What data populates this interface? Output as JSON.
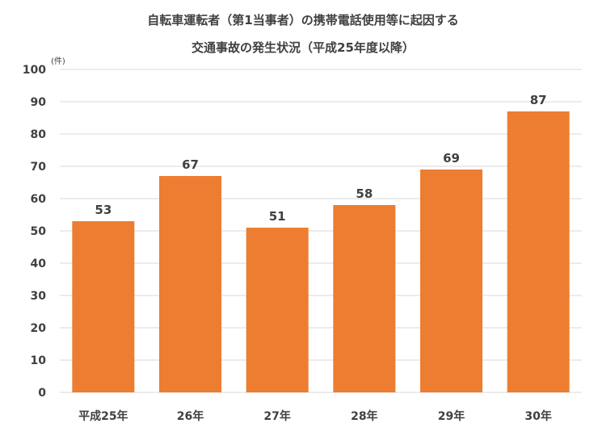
{
  "chart_data": {
    "type": "bar",
    "title": [
      "自転車運転者（第1当事者）の携帯電話使用等に起因する",
      "交通事故の発生状況（平成25年度以降）"
    ],
    "ylabel": "(件)",
    "categories": [
      "平成25年",
      "26年",
      "27年",
      "28年",
      "29年",
      "30年"
    ],
    "values": [
      53,
      67,
      51,
      58,
      69,
      87
    ],
    "ylim": [
      0,
      100
    ],
    "yticks": [
      0,
      10,
      20,
      30,
      40,
      50,
      60,
      70,
      80,
      90,
      100
    ],
    "grid": true,
    "bar_color": "#ED7D31"
  }
}
